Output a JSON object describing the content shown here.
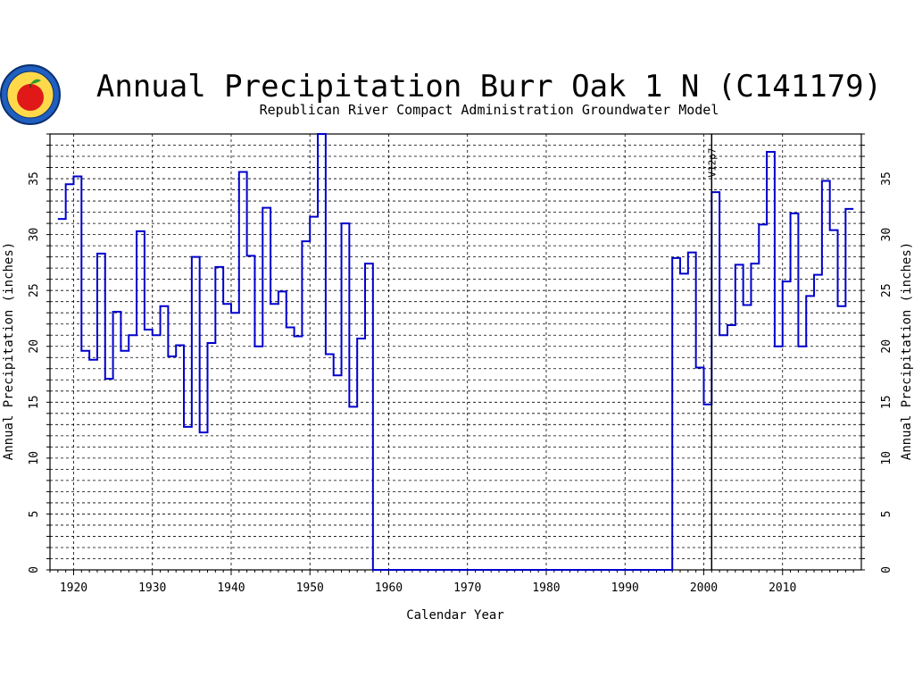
{
  "chart_data": {
    "type": "line",
    "step": true,
    "title": "Annual Precipitation Burr Oak 1 N (C141179)",
    "subtitle": "Republican River Compact Administration Groundwater Model",
    "xlabel": "Calendar Year",
    "ylabel": "Annual Precipitation (inches)",
    "ylabel_right": "Annual Precipitation (inches)",
    "xlim": [
      1917,
      2020
    ],
    "ylim": [
      0,
      39
    ],
    "x_ticks": [
      1920,
      1930,
      1940,
      1950,
      1960,
      1970,
      1980,
      1990,
      2000,
      2010
    ],
    "y_ticks": [
      0,
      5,
      10,
      15,
      20,
      25,
      30,
      35
    ],
    "grid": true,
    "marker": {
      "x": 2001,
      "label": "V12p7"
    },
    "series": [
      {
        "color": "#0000cc",
        "x": [
          1918,
          1919,
          1920,
          1921,
          1922,
          1923,
          1924,
          1925,
          1926,
          1927,
          1928,
          1929,
          1930,
          1931,
          1932,
          1933,
          1934,
          1935,
          1936,
          1937,
          1938,
          1939,
          1940,
          1941,
          1942,
          1943,
          1944,
          1945,
          1946,
          1947,
          1948,
          1949,
          1950,
          1951,
          1952,
          1953,
          1954,
          1955,
          1956,
          1957,
          1958,
          1959,
          1960,
          1961,
          1962,
          1963,
          1964,
          1965,
          1966,
          1967,
          1968,
          1969,
          1970,
          1971,
          1972,
          1973,
          1974,
          1975,
          1976,
          1977,
          1978,
          1979,
          1980,
          1981,
          1982,
          1983,
          1984,
          1985,
          1986,
          1987,
          1988,
          1989,
          1990,
          1991,
          1992,
          1993,
          1994,
          1995,
          1996,
          1997,
          1998,
          1999,
          2000,
          2001,
          2002,
          2003,
          2004,
          2005,
          2006,
          2007,
          2008,
          2009,
          2010,
          2011,
          2012,
          2013,
          2014,
          2015,
          2016,
          2017,
          2018
        ],
        "values": [
          31.4,
          34.5,
          35.2,
          19.6,
          18.8,
          28.3,
          17.1,
          23.1,
          19.6,
          21.0,
          30.3,
          21.5,
          21.0,
          23.6,
          19.1,
          20.1,
          12.8,
          28.0,
          12.3,
          20.3,
          27.1,
          23.8,
          23.0,
          35.6,
          28.1,
          20.0,
          32.4,
          23.8,
          24.9,
          21.7,
          20.9,
          29.4,
          31.6,
          39.0,
          19.3,
          17.4,
          31.0,
          14.6,
          20.7,
          27.4,
          0,
          0,
          0,
          0,
          0,
          0,
          0,
          0,
          0,
          0,
          0,
          0,
          0,
          0,
          0,
          0,
          0,
          0,
          0,
          0,
          0,
          0,
          0,
          0,
          0,
          0,
          0,
          0,
          0,
          0,
          0,
          0,
          0,
          0,
          0,
          0,
          0,
          0,
          27.9,
          26.5,
          28.4,
          18.1,
          14.8,
          33.8,
          21.0,
          21.9,
          27.3,
          23.7,
          27.4,
          30.9,
          37.4,
          20.0,
          25.8,
          31.9,
          20.0,
          24.5,
          26.4,
          34.8,
          30.4,
          23.6,
          32.3
        ]
      }
    ]
  }
}
